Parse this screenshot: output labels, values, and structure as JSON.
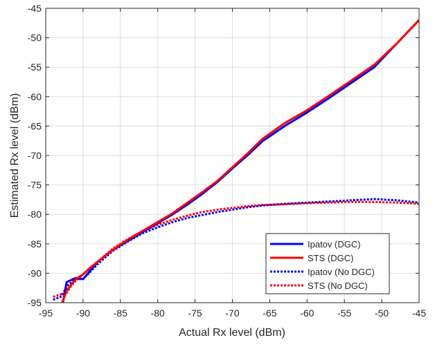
{
  "chart_data": {
    "type": "line",
    "title": "",
    "xlabel": "Actual Rx level (dBm)",
    "ylabel": "Estimated Rx level (dBm)",
    "xlim": [
      -95,
      -45
    ],
    "ylim": [
      -95,
      -45
    ],
    "xticks": [
      -95,
      -90,
      -85,
      -80,
      -75,
      -70,
      -65,
      -60,
      -55,
      -50,
      -45
    ],
    "yticks": [
      -95,
      -90,
      -85,
      -80,
      -75,
      -70,
      -65,
      -60,
      -55,
      -50,
      -45
    ],
    "grid": true,
    "legend_position": "bottom-right",
    "series": [
      {
        "name": "Ipatov (DGC)",
        "color": "#0000ff",
        "style": "solid",
        "x": [
          -92.7,
          -92.2,
          -91,
          -90,
          -88,
          -86,
          -84,
          -82,
          -80,
          -78,
          -76,
          -74,
          -72,
          -70,
          -68,
          -66,
          -63,
          -60,
          -57,
          -54,
          -51,
          -48,
          -45
        ],
        "y": [
          -95,
          -91.5,
          -90.8,
          -91,
          -88,
          -86,
          -84.5,
          -83,
          -81.5,
          -80,
          -78.3,
          -76.5,
          -74.5,
          -72.2,
          -70,
          -67.6,
          -65,
          -62.7,
          -60.2,
          -57.6,
          -55,
          -51,
          -47
        ]
      },
      {
        "name": "STS (DGC)",
        "color": "#ff0000",
        "style": "solid",
        "x": [
          -92.8,
          -92.2,
          -91.5,
          -91,
          -90,
          -89,
          -88,
          -86,
          -84,
          -82,
          -80,
          -78,
          -76,
          -74,
          -72,
          -70,
          -68,
          -66,
          -63,
          -60,
          -57,
          -54,
          -51,
          -48,
          -45
        ],
        "y": [
          -95,
          -93,
          -91.8,
          -91,
          -90.2,
          -89,
          -88,
          -86,
          -84.3,
          -82.8,
          -81.3,
          -79.8,
          -78,
          -76.2,
          -74.3,
          -72,
          -69.7,
          -67.2,
          -64.5,
          -62.3,
          -59.8,
          -57.2,
          -54.6,
          -51,
          -47
        ]
      },
      {
        "name": "Ipatov (No DGC)",
        "color": "#0000ff",
        "style": "dotted",
        "x": [
          -94,
          -93,
          -92,
          -91,
          -90,
          -88,
          -86,
          -84,
          -82,
          -80,
          -78,
          -76,
          -74,
          -72,
          -70,
          -68,
          -66,
          -63,
          -60,
          -57,
          -54,
          -51,
          -48,
          -45
        ],
        "y": [
          -94.5,
          -94,
          -92,
          -91,
          -91,
          -88.4,
          -86.2,
          -84.6,
          -83.2,
          -82.2,
          -81.3,
          -80.6,
          -80.1,
          -79.6,
          -79.2,
          -78.8,
          -78.5,
          -78.2,
          -78,
          -77.8,
          -77.6,
          -77.4,
          -77.6,
          -78
        ]
      },
      {
        "name": "STS (No DGC)",
        "color": "#ff0000",
        "style": "dotted",
        "x": [
          -94,
          -93,
          -92.3,
          -91.5,
          -91,
          -90,
          -88,
          -86,
          -84,
          -82,
          -80,
          -78,
          -76,
          -74,
          -72,
          -70,
          -68,
          -66,
          -63,
          -60,
          -57,
          -54,
          -51,
          -48,
          -45
        ],
        "y": [
          -94,
          -93.6,
          -93.5,
          -92,
          -91.3,
          -90.2,
          -88,
          -85.8,
          -84.2,
          -82.8,
          -81.8,
          -80.9,
          -80.2,
          -79.6,
          -79.2,
          -78.9,
          -78.6,
          -78.4,
          -78.3,
          -78.1,
          -78,
          -77.9,
          -77.9,
          -78,
          -78.2
        ]
      }
    ]
  }
}
